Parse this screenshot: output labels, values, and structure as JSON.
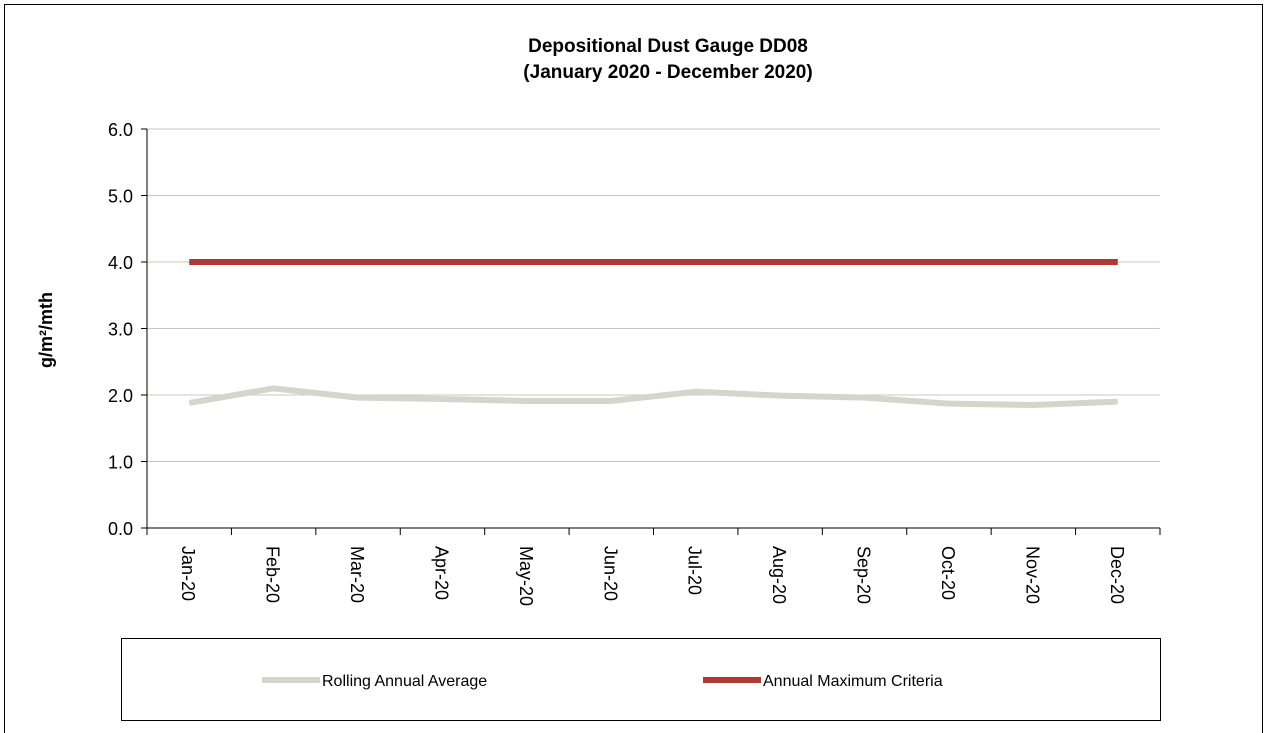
{
  "chart_data": {
    "type": "line",
    "title": [
      "Depositional Dust Gauge DD08",
      "(January 2020  - December 2020)"
    ],
    "y_label": "g/m²/mth",
    "categories": [
      "Jan-20",
      "Feb-20",
      "Mar-20",
      "Apr-20",
      "May-20",
      "Jun-20",
      "Jul-20",
      "Aug-20",
      "Sep-20",
      "Oct-20",
      "Nov-20",
      "Dec-20"
    ],
    "series": [
      {
        "name": "Rolling Annual Average",
        "color": "#d4d6cb",
        "values": [
          1.88,
          2.1,
          1.96,
          1.94,
          1.91,
          1.91,
          2.05,
          1.99,
          1.96,
          1.87,
          1.85,
          1.9
        ]
      },
      {
        "name": "Annual Maximum Criteria",
        "color": "#b03a32",
        "values": [
          4.0,
          4.0,
          4.0,
          4.0,
          4.0,
          4.0,
          4.0,
          4.0,
          4.0,
          4.0,
          4.0,
          4.0
        ]
      }
    ],
    "ylim": [
      0,
      6
    ],
    "yticks": [
      {
        "value": 0,
        "label": "0.0"
      },
      {
        "value": 1,
        "label": "1.0"
      },
      {
        "value": 2,
        "label": "2.0"
      },
      {
        "value": 3,
        "label": "3.0"
      },
      {
        "value": 4,
        "label": "4.0"
      },
      {
        "value": 5,
        "label": "5.0"
      },
      {
        "value": 6,
        "label": "6.0"
      }
    ],
    "grid": true,
    "legend": "bottom"
  }
}
